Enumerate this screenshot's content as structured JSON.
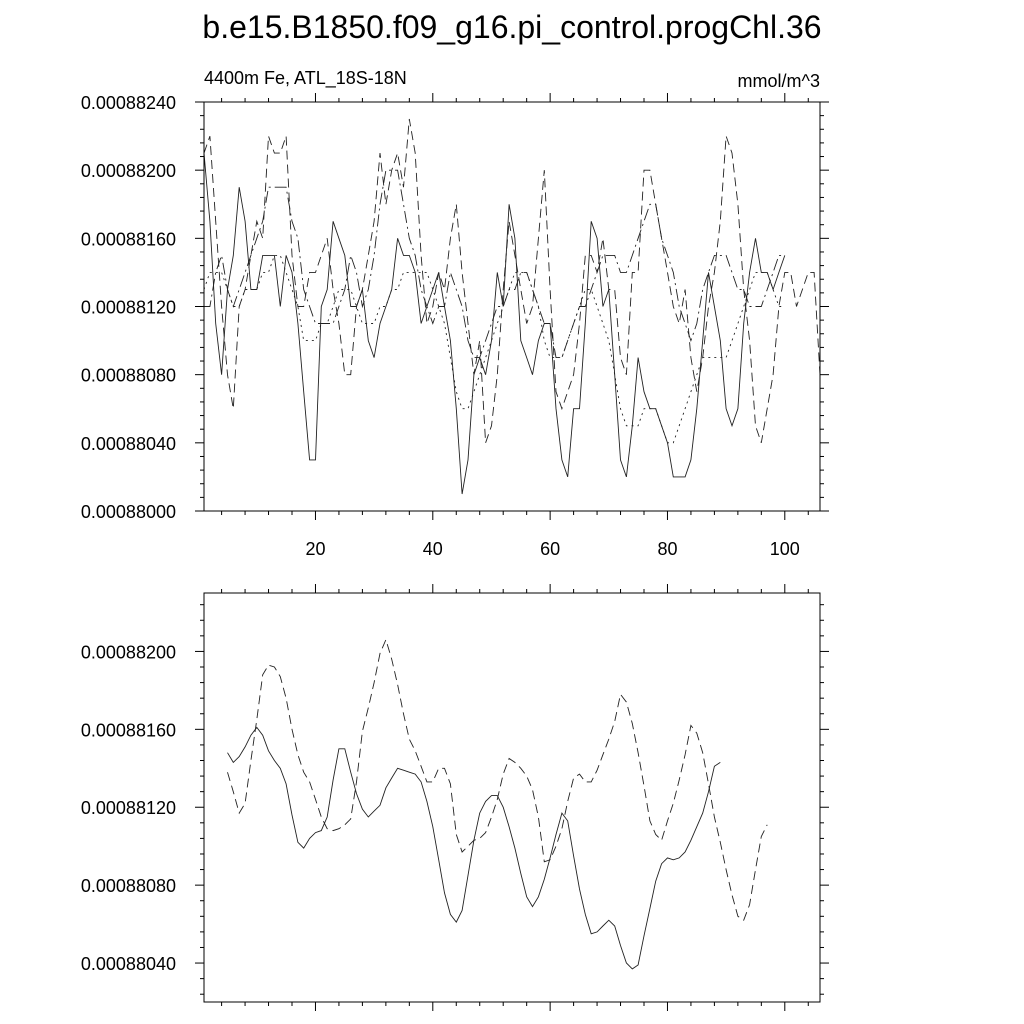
{
  "title": "b.e15.B1850.f09_g16.pi_control.progChl.36",
  "chart_data": [
    {
      "type": "line",
      "subtitle_left": "4400m Fe, ATL_18S-18N",
      "subtitle_right": "mmol/m^3",
      "xlim": [
        1,
        106
      ],
      "ylim": [
        0.00088,
        0.0008824
      ],
      "xticks": [
        20,
        40,
        60,
        80,
        100
      ],
      "x_tick_labels": [
        "20",
        "40",
        "60",
        "80",
        "100"
      ],
      "yticks": [
        0.00088,
        0.0008804,
        0.0008808,
        0.0008812,
        0.0008816,
        0.000882,
        0.0008824
      ],
      "y_tick_labels": [
        "0.00088000",
        "0.00088040",
        "0.00088080",
        "0.00088120",
        "0.00088160",
        "0.00088200",
        "0.00088240"
      ],
      "grid": false,
      "series": [
        {
          "style": "solid",
          "x_start": 1,
          "values": [
            0.0008821,
            0.0008817,
            0.0008811,
            0.0008808,
            0.0008813,
            0.0008815,
            0.0008819,
            0.0008817,
            0.0008813,
            0.0008813,
            0.0008815,
            0.0008815,
            0.0008815,
            0.0008812,
            0.0008815,
            0.0008814,
            0.0008811,
            0.0008807,
            0.0008803,
            0.0008803,
            0.0008812,
            0.0008813,
            0.0008817,
            0.0008816,
            0.0008815,
            0.0008812,
            0.0008812,
            0.0008813,
            0.000881,
            0.0008809,
            0.0008811,
            0.0008812,
            0.0008813,
            0.0008816,
            0.0008815,
            0.0008815,
            0.0008814,
            0.0008811,
            0.0008812,
            0.0008813,
            0.0008814,
            0.0008812,
            0.000881,
            0.0008806,
            0.0008801,
            0.0008803,
            0.0008808,
            0.0008809,
            0.0008808,
            0.000881,
            0.0008814,
            0.0008812,
            0.0008818,
            0.0008816,
            0.000881,
            0.0008809,
            0.0008808,
            0.000881,
            0.0008811,
            0.0008811,
            0.0008806,
            0.0008803,
            0.0008802,
            0.0008806,
            0.0008806,
            0.0008811,
            0.0008817,
            0.0008816,
            0.0008812,
            0.0008813,
            0.0008808,
            0.0008803,
            0.0008802,
            0.0008805,
            0.0008809,
            0.0008807,
            0.0008806,
            0.0008806,
            0.0008805,
            0.0008804,
            0.0008802,
            0.0008802,
            0.0008802,
            0.0008803,
            0.0008806,
            0.000881,
            0.0008814,
            0.0008812,
            0.000881,
            0.0008806,
            0.0008805,
            0.0008806,
            0.0008811,
            0.0008814,
            0.0008816,
            0.0008814,
            0.0008814,
            0.0008813,
            0.0008814,
            0.0008815
          ]
        },
        {
          "style": "dashed",
          "x_start": 1,
          "values": [
            0.0008821,
            0.0008822,
            0.0008817,
            0.0008812,
            0.0008808,
            0.0008806,
            0.0008812,
            0.0008813,
            0.0008815,
            0.0008817,
            0.0008816,
            0.0008822,
            0.0008821,
            0.0008821,
            0.0008822,
            0.0008815,
            0.0008812,
            0.0008812,
            0.0008814,
            0.0008814,
            0.0008815,
            0.0008816,
            0.0008813,
            0.0008811,
            0.0008808,
            0.0008808,
            0.0008812,
            0.0008813,
            0.0008815,
            0.0008817,
            0.0008821,
            0.0008818,
            0.000882,
            0.0008821,
            0.0008819,
            0.0008823,
            0.0008821,
            0.0008815,
            0.0008811,
            0.0008812,
            0.0008814,
            0.0008813,
            0.0008816,
            0.0008818,
            0.0008814,
            0.0008811,
            0.0008808,
            0.000881,
            0.0008804,
            0.0008805,
            0.0008808,
            0.0008813,
            0.0008817,
            0.0008815,
            0.0008813,
            0.0008811,
            0.0008812,
            0.0008816,
            0.000882,
            0.0008813,
            0.0008807,
            0.0008806,
            0.0008807,
            0.0008808,
            0.0008811,
            0.0008815,
            0.0008815,
            0.0008814,
            0.0008816,
            0.0008813,
            0.0008813,
            0.0008809,
            0.0008808,
            0.0008814,
            0.0008814,
            0.000882,
            0.000882,
            0.0008818,
            0.0008816,
            0.0008814,
            0.0008812,
            0.0008811,
            0.0008813,
            0.0008809,
            0.0008807,
            0.0008809,
            0.0008812,
            0.0008814,
            0.0008817,
            0.0008822,
            0.0008821,
            0.0008818,
            0.0008813,
            0.000881,
            0.0008805,
            0.0008804,
            0.0008806,
            0.0008808,
            0.0008812,
            0.0008814,
            0.0008814,
            0.0008812,
            0.0008813,
            0.0008814,
            0.0008814,
            0.0008808
          ]
        },
        {
          "style": "dash-dot",
          "x_start": 1,
          "values": [
            0.0008812,
            0.0008812,
            0.0008814,
            0.0008815,
            0.0008813,
            0.0008812,
            0.0008813,
            0.0008814,
            0.0008815,
            0.0008816,
            0.0008817,
            0.0008819,
            0.0008819,
            0.0008819,
            0.0008819,
            0.0008817,
            0.0008816,
            0.0008813,
            0.0008812,
            0.0008811,
            0.0008811,
            0.0008811,
            0.0008811,
            0.0008812,
            0.0008813,
            0.0008815,
            0.0008814,
            0.0008812,
            0.0008813,
            0.0008815,
            0.0008818,
            0.000882,
            0.000882,
            0.000882,
            0.0008818,
            0.0008816,
            0.0008815,
            0.0008813,
            0.0008812,
            0.0008811,
            0.0008812,
            0.0008812,
            0.0008814,
            0.0008813,
            0.0008812,
            0.000881,
            0.0008809,
            0.0008809,
            0.000881,
            0.0008811,
            0.0008812,
            0.0008812,
            0.0008813,
            0.0008813,
            0.0008814,
            0.0008814,
            0.0008813,
            0.0008812,
            0.0008811,
            0.0008811,
            0.0008809,
            0.0008809,
            0.000881,
            0.0008811,
            0.0008812,
            0.0008812,
            0.0008813,
            0.0008814,
            0.0008815,
            0.0008815,
            0.0008815,
            0.0008814,
            0.0008814,
            0.0008815,
            0.0008816,
            0.0008817,
            0.0008818,
            0.0008818,
            0.0008816,
            0.0008815,
            0.0008814,
            0.0008812,
            0.0008811,
            0.000881,
            0.0008811,
            0.0008813,
            0.0008814,
            0.0008815,
            0.0008815,
            0.0008815,
            0.0008814,
            0.0008813,
            0.0008813,
            0.0008812,
            0.0008812,
            0.0008812,
            0.0008813,
            0.0008814,
            0.0008815,
            0.0008815
          ]
        },
        {
          "style": "dotted",
          "x_start": 1,
          "values": [
            0.0008813,
            0.0008814,
            0.0008814,
            0.0008814,
            0.0008813,
            0.0008812,
            0.0008812,
            0.0008813,
            0.0008813,
            0.0008813,
            0.0008814,
            0.0008814,
            0.0008815,
            0.0008815,
            0.0008814,
            0.0008813,
            0.0008812,
            0.000881,
            0.000881,
            0.000881,
            0.0008811,
            0.0008811,
            0.0008812,
            0.0008813,
            0.0008813,
            0.0008813,
            0.0008812,
            0.0008811,
            0.0008811,
            0.0008811,
            0.0008812,
            0.0008812,
            0.0008813,
            0.0008813,
            0.0008814,
            0.0008814,
            0.0008814,
            0.0008814,
            0.0008814,
            0.0008813,
            0.0008812,
            0.0008811,
            0.0008809,
            0.0008807,
            0.0008806,
            0.0008806,
            0.0008807,
            0.0008808,
            0.0008809,
            0.000881,
            0.0008811,
            0.0008812,
            0.0008813,
            0.0008814,
            0.0008814,
            0.0008814,
            0.0008813,
            0.0008812,
            0.000881,
            0.0008809,
            0.0008809,
            0.0008809,
            0.000881,
            0.0008811,
            0.0008812,
            0.0008813,
            0.0008813,
            0.0008812,
            0.0008811,
            0.000881,
            0.0008808,
            0.0008806,
            0.0008805,
            0.0008805,
            0.0008805,
            0.0008806,
            0.0008806,
            0.0008806,
            0.0008805,
            0.0008804,
            0.0008804,
            0.0008805,
            0.0008806,
            0.0008807,
            0.0008808,
            0.0008809,
            0.0008809,
            0.0008809,
            0.0008809,
            0.0008809,
            0.000881,
            0.0008811,
            0.0008812,
            0.0008813,
            0.0008814,
            0.0008814,
            0.0008814,
            0.0008813,
            0.0008812,
            0.0008812
          ]
        }
      ]
    },
    {
      "type": "line",
      "xlim": [
        1,
        106
      ],
      "ylim": [
        0.0008802,
        0.0008823
      ],
      "xticks": [
        20,
        40,
        60,
        80,
        100
      ],
      "yticks": [
        0.0008804,
        0.0008808,
        0.0008812,
        0.0008816,
        0.000882
      ],
      "y_tick_labels": [
        "0.00088040",
        "0.00088080",
        "0.00088120",
        "0.00088160",
        "0.00088200"
      ],
      "grid": false,
      "series": [
        {
          "style": "solid",
          "x_start": 5,
          "values": [
            0.00088148,
            0.00088143,
            0.00088146,
            0.00088151,
            0.00088157,
            0.00088161,
            0.00088157,
            0.00088149,
            0.00088144,
            0.0008814,
            0.00088132,
            0.00088116,
            0.00088102,
            0.00088099,
            0.00088104,
            0.00088107,
            0.00088108,
            0.00088115,
            0.00088134,
            0.0008815,
            0.0008815,
            0.00088138,
            0.00088127,
            0.00088119,
            0.00088115,
            0.00088118,
            0.00088121,
            0.0008813,
            0.00088135,
            0.0008814,
            0.00088139,
            0.00088138,
            0.00088137,
            0.00088133,
            0.00088123,
            0.0008811,
            0.00088093,
            0.00088076,
            0.00088065,
            0.00088061,
            0.00088067,
            0.00088085,
            0.00088103,
            0.00088117,
            0.00088123,
            0.00088126,
            0.00088126,
            0.0008812,
            0.0008811,
            0.00088099,
            0.00088086,
            0.00088074,
            0.00088069,
            0.00088074,
            0.00088083,
            0.00088094,
            0.00088106,
            0.00088117,
            0.00088113,
            0.00088095,
            0.00088078,
            0.00088065,
            0.00088055,
            0.00088056,
            0.00088059,
            0.00088062,
            0.00088059,
            0.00088049,
            0.0008804,
            0.00088037,
            0.00088039,
            0.00088054,
            0.00088068,
            0.00088082,
            0.00088091,
            0.00088094,
            0.00088093,
            0.00088094,
            0.00088097,
            0.00088103,
            0.0008811,
            0.00088117,
            0.00088128,
            0.00088141,
            0.00088143
          ]
        },
        {
          "style": "dashed",
          "x_start": 5,
          "values": [
            0.00088138,
            0.00088128,
            0.00088117,
            0.00088122,
            0.00088144,
            0.00088165,
            0.00088188,
            0.00088193,
            0.00088192,
            0.00088187,
            0.00088176,
            0.0008816,
            0.00088147,
            0.00088138,
            0.00088133,
            0.00088124,
            0.00088115,
            0.00088109,
            0.00088108,
            0.00088109,
            0.00088111,
            0.00088114,
            0.00088133,
            0.00088159,
            0.00088171,
            0.00088184,
            0.00088199,
            0.00088206,
            0.00088196,
            0.00088183,
            0.00088168,
            0.00088155,
            0.00088149,
            0.00088141,
            0.00088133,
            0.00088133,
            0.0008814,
            0.0008814,
            0.00088132,
            0.00088106,
            0.00088097,
            0.000881,
            0.00088103,
            0.00088104,
            0.00088107,
            0.00088115,
            0.00088124,
            0.00088137,
            0.00088145,
            0.00088143,
            0.0008814,
            0.00088136,
            0.00088129,
            0.00088115,
            0.00088092,
            0.00088093,
            0.000881,
            0.00088109,
            0.00088123,
            0.00088135,
            0.00088137,
            0.00088133,
            0.00088133,
            0.00088139,
            0.00088147,
            0.00088155,
            0.00088164,
            0.00088178,
            0.00088174,
            0.00088163,
            0.00088148,
            0.00088131,
            0.00088113,
            0.00088106,
            0.00088103,
            0.00088113,
            0.00088122,
            0.00088134,
            0.00088147,
            0.00088162,
            0.00088158,
            0.00088148,
            0.00088132,
            0.00088115,
            0.00088102,
            0.00088088,
            0.00088075,
            0.00088064,
            0.00088062,
            0.0008807,
            0.00088088,
            0.00088105,
            0.00088111
          ]
        }
      ]
    }
  ]
}
